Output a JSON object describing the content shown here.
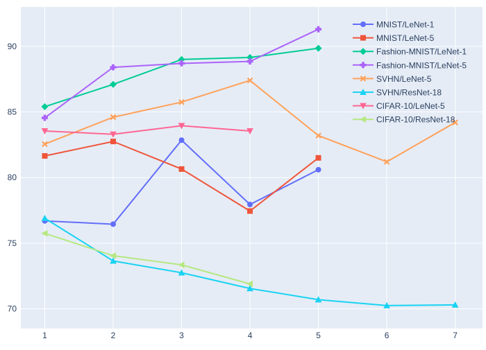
{
  "chart_data": {
    "type": "line",
    "title": "",
    "xlabel": "",
    "ylabel": "",
    "xlim": [
      0.65,
      7.4
    ],
    "ylim": [
      68.5,
      93.0
    ],
    "x_ticks": [
      1,
      2,
      3,
      4,
      5,
      6,
      7
    ],
    "y_ticks": [
      70,
      75,
      80,
      85,
      90
    ],
    "grid": true,
    "legend_position": "top-right",
    "background": "#E5ECF6",
    "series": [
      {
        "name": "MNIST/LeNet-1",
        "color": "#636EFA",
        "marker": "circle",
        "x": [
          1,
          2,
          3,
          4,
          5
        ],
        "y": [
          76.7,
          76.45,
          82.85,
          77.95,
          80.6
        ]
      },
      {
        "name": "MNIST/LeNet-5",
        "color": "#EF553B",
        "marker": "square",
        "x": [
          1,
          2,
          3,
          4,
          5
        ],
        "y": [
          81.65,
          82.75,
          80.65,
          77.45,
          81.5
        ]
      },
      {
        "name": "Fashion-MNIST/LeNet-1",
        "color": "#00CC96",
        "marker": "diamond",
        "x": [
          1,
          2,
          3,
          4,
          5
        ],
        "y": [
          85.4,
          87.1,
          89.0,
          89.15,
          89.85
        ]
      },
      {
        "name": "Fashion-MNIST/LeNet-5",
        "color": "#AB63FA",
        "marker": "cross",
        "x": [
          1,
          2,
          3,
          4,
          5
        ],
        "y": [
          84.55,
          88.4,
          88.7,
          88.85,
          91.3
        ]
      },
      {
        "name": "SVHN/LeNet-5",
        "color": "#FFA15A",
        "marker": "x",
        "x": [
          1,
          2,
          3,
          4,
          5,
          6,
          7
        ],
        "y": [
          82.55,
          84.6,
          85.75,
          87.4,
          83.2,
          81.2,
          84.2
        ]
      },
      {
        "name": "SVHN/ResNet-18",
        "color": "#19D3F3",
        "marker": "triangle-up",
        "x": [
          1,
          2,
          3,
          4,
          5,
          6,
          7
        ],
        "y": [
          76.9,
          73.65,
          72.75,
          71.55,
          70.7,
          70.25,
          70.3
        ]
      },
      {
        "name": "CIFAR-10/LeNet-5",
        "color": "#FF6692",
        "marker": "triangle-down",
        "x": [
          1,
          2,
          3,
          4
        ],
        "y": [
          83.55,
          83.3,
          83.95,
          83.55
        ]
      },
      {
        "name": "CIFAR-10/ResNet-18",
        "color": "#B6E880",
        "marker": "triangle-left",
        "x": [
          1,
          2,
          3,
          4
        ],
        "y": [
          75.75,
          74.05,
          73.35,
          71.9
        ]
      }
    ]
  }
}
